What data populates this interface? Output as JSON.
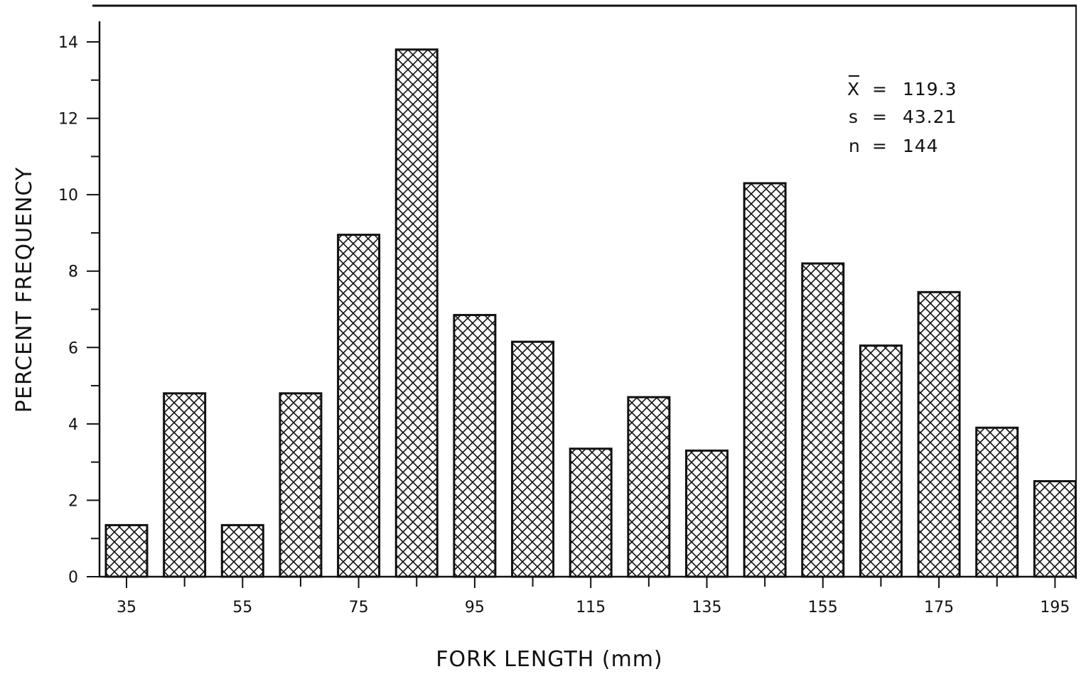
{
  "chart_data": {
    "type": "bar",
    "xlabel": "FORK LENGTH (mm)",
    "ylabel": "PERCENT FREQUENCY",
    "ylim": [
      0,
      14
    ],
    "y_major_ticks": [
      0,
      2,
      4,
      6,
      8,
      10,
      12,
      14
    ],
    "y_tick_labels": [
      "0",
      "2",
      "4",
      "6",
      "8",
      "10",
      "12",
      "14"
    ],
    "x_tick_labels": [
      "35",
      "55",
      "75",
      "95",
      "115",
      "135",
      "155",
      "175",
      "195"
    ],
    "categories": [
      "35",
      "45",
      "55",
      "65",
      "75",
      "85",
      "95",
      "105",
      "115",
      "125",
      "135",
      "145",
      "155",
      "165",
      "175",
      "185",
      "195"
    ],
    "values": [
      1.35,
      4.8,
      1.35,
      4.8,
      8.95,
      13.8,
      6.85,
      6.15,
      3.35,
      4.7,
      3.3,
      10.3,
      8.2,
      6.05,
      7.45,
      3.9,
      2.5
    ],
    "bar_fill": "crosshatch",
    "annotations": [
      {
        "symbol": "X",
        "eq": "=",
        "value": "119.3"
      },
      {
        "symbol": "s",
        "eq": "=",
        "value": "43.21"
      },
      {
        "symbol": "n",
        "eq": "=",
        "value": "144"
      }
    ],
    "grid": false,
    "colors": {
      "ink": "#111111",
      "background": "#ffffff"
    }
  }
}
